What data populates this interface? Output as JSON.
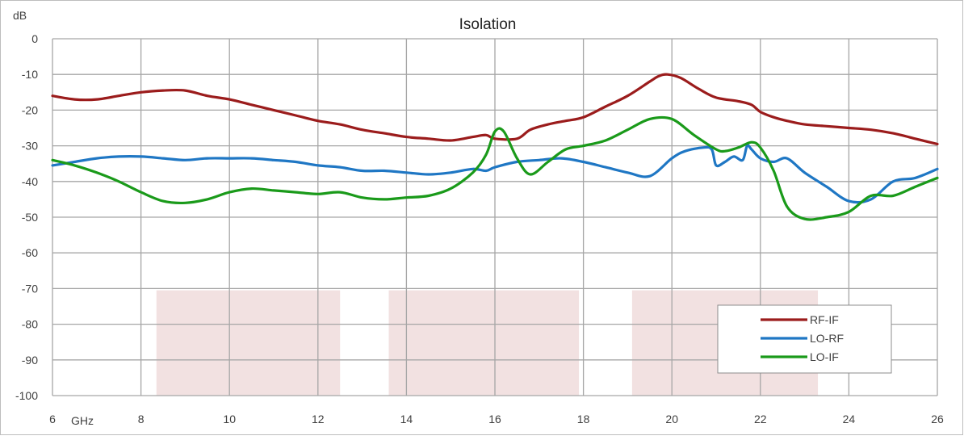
{
  "chart_data": {
    "type": "line",
    "title": "Isolation",
    "ylabel": "dB",
    "xlabel": "GHz",
    "xlim": [
      6,
      26
    ],
    "ylim": [
      -100,
      0
    ],
    "x_ticks": [
      6,
      8,
      10,
      12,
      14,
      16,
      18,
      20,
      22,
      24,
      26
    ],
    "y_ticks": [
      0,
      -10,
      -20,
      -30,
      -40,
      -50,
      -60,
      -70,
      -80,
      -90,
      -100
    ],
    "grid": true,
    "legend_position": "bottom-right",
    "shaded_bands": [
      {
        "x0": 8.35,
        "x1": 12.5,
        "y0": -100,
        "y1": -70.5,
        "color": "#f2e1e1"
      },
      {
        "x0": 13.6,
        "x1": 17.9,
        "y0": -100,
        "y1": -70.5,
        "color": "#f2e1e1"
      },
      {
        "x0": 19.1,
        "x1": 23.3,
        "y0": -100,
        "y1": -70.5,
        "color": "#f2e1e1"
      }
    ],
    "series": [
      {
        "name": "RF-IF",
        "color": "#9b1c1c",
        "x": [
          6,
          6.5,
          7,
          7.5,
          8,
          8.5,
          9,
          9.5,
          10,
          10.5,
          11,
          11.5,
          12,
          12.5,
          13,
          13.5,
          14,
          14.5,
          15,
          15.5,
          15.8,
          16,
          16.5,
          16.8,
          17.2,
          17.6,
          18,
          18.5,
          19,
          19.5,
          19.7,
          19.9,
          20.2,
          20.6,
          21,
          21.5,
          21.8,
          22,
          22.3,
          22.6,
          23,
          23.5,
          24,
          24.5,
          25,
          25.5,
          26
        ],
        "y": [
          -16,
          -17,
          -17,
          -16,
          -15,
          -14.5,
          -14.5,
          -16,
          -17,
          -18.5,
          -20,
          -21.5,
          -23,
          -24,
          -25.5,
          -26.5,
          -27.5,
          -28,
          -28.5,
          -27.5,
          -27,
          -28,
          -28,
          -25.5,
          -24,
          -23,
          -22,
          -19,
          -16,
          -12,
          -10.5,
          -10,
          -11,
          -14,
          -16.5,
          -17.5,
          -18.5,
          -20.5,
          -22,
          -23,
          -24,
          -24.5,
          -25,
          -25.5,
          -26.5,
          -28,
          -29.5
        ]
      },
      {
        "name": "LO-RF",
        "color": "#1f77c4",
        "x": [
          6,
          6.5,
          7,
          7.5,
          8,
          8.5,
          9,
          9.5,
          10,
          10.5,
          11,
          11.5,
          12,
          12.5,
          13,
          13.5,
          14,
          14.5,
          15,
          15.5,
          15.8,
          16,
          16.5,
          17,
          17.5,
          18,
          18.5,
          19,
          19.5,
          20,
          20.3,
          20.7,
          20.9,
          21.0,
          21.2,
          21.4,
          21.6,
          21.7,
          21.8,
          22,
          22.3,
          22.6,
          23,
          23.5,
          24,
          24.5,
          25,
          25.5,
          26
        ],
        "y": [
          -35.5,
          -34.5,
          -33.5,
          -33,
          -33,
          -33.5,
          -34,
          -33.5,
          -33.5,
          -33.5,
          -34,
          -34.5,
          -35.5,
          -36,
          -37,
          -37,
          -37.5,
          -38,
          -37.5,
          -36.5,
          -37,
          -36,
          -34.5,
          -34,
          -33.5,
          -34.5,
          -36,
          -37.5,
          -38.5,
          -33.5,
          -31.5,
          -30.5,
          -31,
          -35.5,
          -34.5,
          -33,
          -34,
          -30,
          -31,
          -33.5,
          -34.5,
          -33.5,
          -37.5,
          -41.5,
          -45.5,
          -45,
          -40,
          -39,
          -36.5
        ]
      },
      {
        "name": "LO-IF",
        "color": "#1a9a1a",
        "x": [
          6,
          6.5,
          7,
          7.5,
          8,
          8.5,
          9,
          9.5,
          10,
          10.5,
          11,
          11.5,
          12,
          12.5,
          13,
          13.5,
          14,
          14.5,
          15,
          15.5,
          15.8,
          16.0,
          16.2,
          16.5,
          16.8,
          17.2,
          17.6,
          18,
          18.5,
          19,
          19.5,
          20,
          20.5,
          21,
          21.2,
          21.5,
          21.8,
          22,
          22.3,
          22.6,
          23,
          23.5,
          24,
          24.5,
          25,
          25.5,
          26
        ],
        "y": [
          -34,
          -35.5,
          -37.5,
          -40,
          -43,
          -45.5,
          -46,
          -45,
          -43,
          -42,
          -42.5,
          -43,
          -43.5,
          -43,
          -44.5,
          -45,
          -44.5,
          -44,
          -42,
          -37.5,
          -32.5,
          -26,
          -26,
          -33.5,
          -38,
          -34.5,
          -31,
          -30,
          -28.5,
          -25.5,
          -22.5,
          -22.5,
          -27,
          -31,
          -31.5,
          -30.5,
          -29,
          -30.5,
          -37,
          -47,
          -50.5,
          -50,
          -48.5,
          -44,
          -44,
          -41.5,
          -39
        ]
      }
    ]
  }
}
